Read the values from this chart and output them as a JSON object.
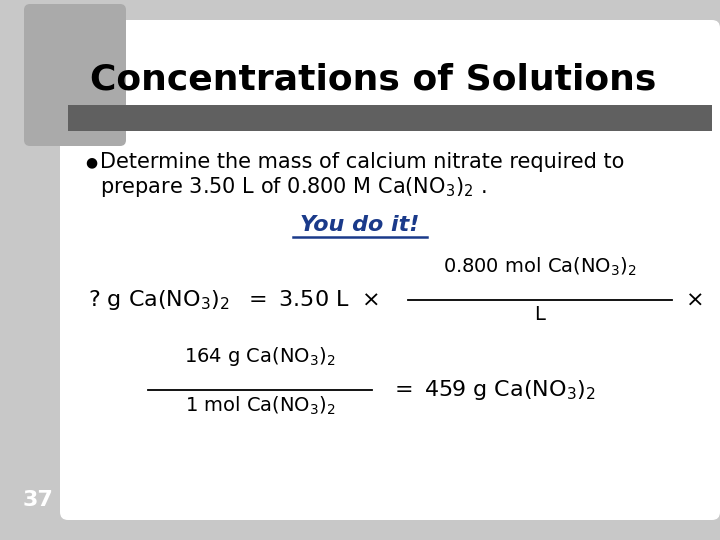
{
  "title": "Concentrations of Solutions",
  "title_fontsize": 26,
  "background_color": "#c8c8c8",
  "white_bg_color": "#ffffff",
  "bar_color": "#606060",
  "bullet_text_line1": "Determine the mass of calcium nitrate required to",
  "bullet_text_line2": "prepare 3.50 L of 0.800 M Ca(NO$_3$)$_2$ .",
  "bullet_fontsize": 15,
  "you_do_it_text": "You do it!",
  "you_do_it_color": "#1a3a8a",
  "you_do_it_fontsize": 16,
  "page_number": "37",
  "page_number_fontsize": 16
}
